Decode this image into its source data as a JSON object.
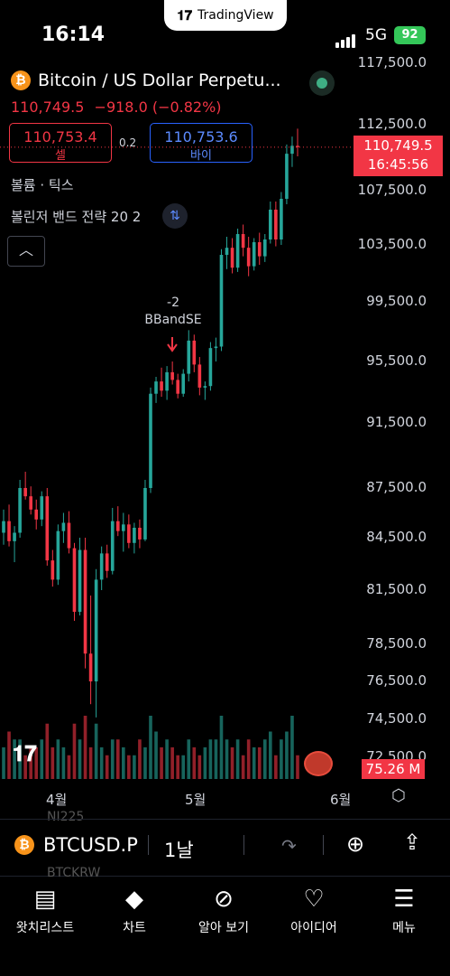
{
  "status_bar": {
    "time": "16:14",
    "network": "5G",
    "battery": "92"
  },
  "app_banner": {
    "logo": "TradingView"
  },
  "symbol": {
    "title": "Bitcoin / US Dollar Perpetu...",
    "last_price": "110,749.5",
    "change": "−918.0 (−0.82%)"
  },
  "trade": {
    "sell_price": "110,753.4",
    "sell_label": "셀",
    "buy_price": "110,753.6",
    "buy_label": "바이",
    "spread": "0.2"
  },
  "indicators": {
    "volume": "볼륨 · 틱스",
    "strategy": "볼린저 밴드 전략 20 2"
  },
  "price_axis": [
    "117,500.0",
    "112,500.0",
    "107,500.0",
    "103,500.0",
    "99,500.0",
    "95,500.0",
    "91,500.0",
    "87,500.0",
    "84,500.0",
    "81,500.0",
    "78,500.0",
    "76,500.0",
    "74,500.0",
    "72,500.0"
  ],
  "current_price_tag": {
    "price": "110,749.5",
    "countdown": "16:45:56"
  },
  "volume_tag": "75.26 M",
  "annotation": {
    "qty": "-2",
    "name": "BBandSE"
  },
  "time_axis": [
    "4월",
    "5월",
    "6월"
  ],
  "toolbar": {
    "symbol": "BTCUSD.P",
    "interval": "1날"
  },
  "ghost_labels": [
    "NI225",
    "BTCKRW"
  ],
  "nav": [
    {
      "label": "왓치리스트",
      "icon": "watchlist-icon"
    },
    {
      "label": "차트",
      "icon": "chart-icon"
    },
    {
      "label": "알아 보기",
      "icon": "explore-icon"
    },
    {
      "label": "아이디어",
      "icon": "ideas-icon"
    },
    {
      "label": "메뉴",
      "icon": "menu-icon"
    }
  ],
  "colors": {
    "up": "#26a69a",
    "down": "#f23645",
    "buy": "#2962ff",
    "background": "#000000"
  },
  "chart_data": {
    "type": "candlestick",
    "x_labels": [
      "4월",
      "5월",
      "6월"
    ],
    "candles": [
      [
        84800,
        86200,
        84100,
        85500
      ],
      [
        85500,
        86500,
        84000,
        84300
      ],
      [
        84300,
        85200,
        83100,
        84800
      ],
      [
        84800,
        88000,
        84500,
        87500
      ],
      [
        87500,
        88500,
        86800,
        87000
      ],
      [
        87000,
        87600,
        85900,
        86200
      ],
      [
        86200,
        86800,
        85000,
        85600
      ],
      [
        85600,
        87300,
        85200,
        87000
      ],
      [
        87000,
        87500,
        82900,
        83200
      ],
      [
        83200,
        83800,
        81700,
        82100
      ],
      [
        82100,
        85300,
        81800,
        84900
      ],
      [
        84900,
        86000,
        84200,
        85400
      ],
      [
        85400,
        86100,
        83600,
        83900
      ],
      [
        83900,
        84200,
        79800,
        80300
      ],
      [
        80300,
        84500,
        80100,
        83800
      ],
      [
        83800,
        84500,
        77200,
        78000
      ],
      [
        78000,
        81200,
        75300,
        76500
      ],
      [
        76500,
        82700,
        74600,
        82100
      ],
      [
        82100,
        84000,
        81500,
        83600
      ],
      [
        83600,
        84100,
        82200,
        82600
      ],
      [
        82600,
        86300,
        82400,
        85500
      ],
      [
        85500,
        86400,
        84600,
        84900
      ],
      [
        84900,
        86000,
        83700,
        85300
      ],
      [
        85300,
        85900,
        83900,
        84200
      ],
      [
        84200,
        85400,
        83600,
        85100
      ],
      [
        85100,
        85600,
        83900,
        84400
      ],
      [
        84400,
        88000,
        84300,
        87500
      ],
      [
        87500,
        93800,
        87200,
        93400
      ],
      [
        93400,
        94500,
        92800,
        94200
      ],
      [
        94200,
        95100,
        93200,
        93600
      ],
      [
        93600,
        95200,
        93000,
        94800
      ],
      [
        94800,
        95500,
        94000,
        94300
      ],
      [
        94300,
        94700,
        93100,
        93400
      ],
      [
        93400,
        95000,
        93200,
        94700
      ],
      [
        94700,
        97600,
        94200,
        96900
      ],
      [
        96900,
        97300,
        94800,
        95300
      ],
      [
        95300,
        95800,
        93300,
        93800
      ],
      [
        93800,
        94200,
        93000,
        93900
      ],
      [
        93900,
        96800,
        93600,
        96400
      ],
      [
        96400,
        97100,
        95500,
        96500
      ],
      [
        96500,
        103200,
        96200,
        102800
      ],
      [
        102800,
        104100,
        101800,
        103300
      ],
      [
        103300,
        104000,
        101500,
        101900
      ],
      [
        101900,
        104700,
        101600,
        104300
      ],
      [
        104300,
        105000,
        102700,
        103300
      ],
      [
        103300,
        104100,
        101300,
        102000
      ],
      [
        102000,
        104000,
        101700,
        103700
      ],
      [
        103700,
        104400,
        102100,
        102700
      ],
      [
        102700,
        104300,
        102300,
        103900
      ],
      [
        103900,
        106700,
        103600,
        106100
      ],
      [
        106100,
        106700,
        103400,
        103900
      ],
      [
        103900,
        107400,
        103500,
        106900
      ],
      [
        106900,
        111000,
        106500,
        110300
      ],
      [
        110300,
        111600,
        109300,
        110900
      ],
      [
        110900,
        112200,
        110100,
        110800
      ]
    ],
    "volume": [
      4,
      6,
      5,
      5,
      3,
      4,
      4,
      5,
      7,
      4,
      5,
      4,
      3,
      7,
      5,
      8,
      4,
      7,
      4,
      3,
      5,
      5,
      4,
      3,
      3,
      5,
      4,
      8,
      6,
      4,
      5,
      4,
      3,
      3,
      5,
      4,
      3,
      4,
      5,
      5,
      8,
      5,
      4,
      5,
      3,
      5,
      4,
      4,
      5,
      6,
      3,
      5,
      6,
      8,
      3
    ],
    "y_ticks": [
      "117,500.0",
      "112,500.0",
      "107,500.0",
      "103,500.0",
      "99,500.0",
      "95,500.0",
      "91,500.0",
      "87,500.0",
      "84,500.0",
      "81,500.0",
      "78,500.0",
      "76,500.0",
      "74,500.0",
      "72,500.0"
    ],
    "grid": false
  }
}
